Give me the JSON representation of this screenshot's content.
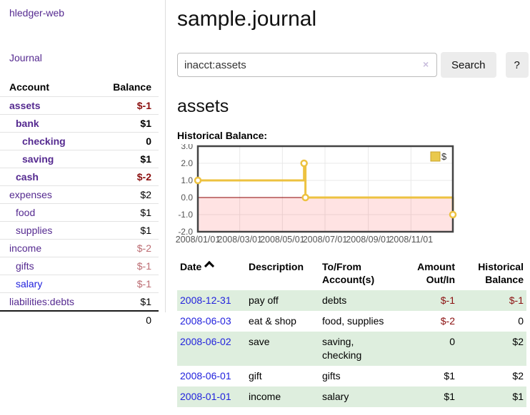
{
  "app": {
    "title": "hledger-web"
  },
  "nav": {
    "journal_label": "Journal"
  },
  "sidebar": {
    "headers": {
      "account": "Account",
      "balance": "Balance"
    },
    "accounts": [
      {
        "label": "assets",
        "depth": 1,
        "bold": true,
        "blue": false,
        "balance": "$-1",
        "balance_style": "negbold"
      },
      {
        "label": "bank",
        "depth": 2,
        "bold": true,
        "blue": false,
        "balance": "$1",
        "balance_style": "bold"
      },
      {
        "label": "checking",
        "depth": 3,
        "bold": true,
        "blue": false,
        "balance": "0",
        "balance_style": "bold"
      },
      {
        "label": "saving",
        "depth": 3,
        "bold": true,
        "blue": false,
        "balance": "$1",
        "balance_style": "bold"
      },
      {
        "label": "cash",
        "depth": 2,
        "bold": true,
        "blue": false,
        "balance": "$-2",
        "balance_style": "negbold"
      },
      {
        "label": "expenses",
        "depth": 1,
        "bold": false,
        "blue": false,
        "balance": "$2",
        "balance_style": "plain"
      },
      {
        "label": "food",
        "depth": 2,
        "bold": false,
        "blue": false,
        "balance": "$1",
        "balance_style": "plain"
      },
      {
        "label": "supplies",
        "depth": 2,
        "bold": false,
        "blue": false,
        "balance": "$1",
        "balance_style": "plain"
      },
      {
        "label": "income",
        "depth": 1,
        "bold": false,
        "blue": false,
        "balance": "$-2",
        "balance_style": "rose"
      },
      {
        "label": "gifts",
        "depth": 2,
        "bold": false,
        "blue": false,
        "balance": "$-1",
        "balance_style": "rose"
      },
      {
        "label": "salary",
        "depth": 2,
        "bold": false,
        "blue": true,
        "balance": "$-1",
        "balance_style": "rose"
      },
      {
        "label": "liabilities:debts",
        "depth": 1,
        "bold": false,
        "blue": false,
        "balance": "$1",
        "balance_style": "plain"
      }
    ],
    "total": "0"
  },
  "header": {
    "title": "sample.journal"
  },
  "search": {
    "value": "inacct:assets",
    "clear_icon": "×",
    "button_label": "Search",
    "help_label": "?"
  },
  "account_page": {
    "title": "assets",
    "chart_label": "Historical Balance:"
  },
  "chart_data": {
    "type": "line",
    "title": "Historical Balance:",
    "step": true,
    "ylim": [
      -2,
      3
    ],
    "y_ticks": [
      3.0,
      2.0,
      1.0,
      0.0,
      -1.0,
      -2.0
    ],
    "x_range_days": 365,
    "x_ticks": [
      {
        "label": "2008/01/01",
        "day": 0
      },
      {
        "label": "2008/03/01",
        "day": 60
      },
      {
        "label": "2008/05/01",
        "day": 121
      },
      {
        "label": "2008/07/01",
        "day": 182
      },
      {
        "label": "2008/09/01",
        "day": 244
      },
      {
        "label": "2008/11/01",
        "day": 305
      }
    ],
    "series": [
      {
        "name": "$",
        "color": "#edc240",
        "points": [
          {
            "date": "2008-01-01",
            "day": 0,
            "value": 1
          },
          {
            "date": "2008-06-01",
            "day": 152,
            "value": 2
          },
          {
            "date": "2008-06-03",
            "day": 154,
            "value": 0
          },
          {
            "date": "2008-12-31",
            "day": 365,
            "value": -1
          }
        ]
      }
    ],
    "legend_position": "top-right",
    "grid": true,
    "negative_fill": "rgba(255,80,80,0.16)",
    "zero_line_color": "#8b0000",
    "border_color": "#434343",
    "tick_label_color": "#545454"
  },
  "register_table": {
    "headers": {
      "date": "Date",
      "description": "Description",
      "accounts": "To/From Account(s)",
      "amount": "Amount Out/In",
      "balance": "Historical Balance"
    },
    "rows": [
      {
        "date": "2008-12-31",
        "description": "pay off",
        "accounts": [
          "debts"
        ],
        "amount": "$-1",
        "amount_negative": true,
        "balance": "$-1",
        "balance_negative": true
      },
      {
        "date": "2008-06-03",
        "description": "eat & shop",
        "accounts": [
          "food, supplies"
        ],
        "amount": "$-2",
        "amount_negative": true,
        "balance": "0",
        "balance_negative": false
      },
      {
        "date": "2008-06-02",
        "description": "save",
        "accounts": [
          "saving,",
          "checking"
        ],
        "amount": "0",
        "amount_negative": false,
        "balance": "$2",
        "balance_negative": false
      },
      {
        "date": "2008-06-01",
        "description": "gift",
        "accounts": [
          "gifts"
        ],
        "amount": "$1",
        "amount_negative": false,
        "balance": "$2",
        "balance_negative": false
      },
      {
        "date": "2008-01-01",
        "description": "income",
        "accounts": [
          "salary"
        ],
        "amount": "$1",
        "amount_negative": false,
        "balance": "$1",
        "balance_negative": false
      }
    ]
  },
  "colors": {
    "link_purple": "#552a90",
    "link_blue": "#2222dd",
    "negative_red": "#8b1010",
    "negative_rose": "#bc6c72",
    "row_stripe_green": "#deeede",
    "series_yellow": "#edc240"
  }
}
